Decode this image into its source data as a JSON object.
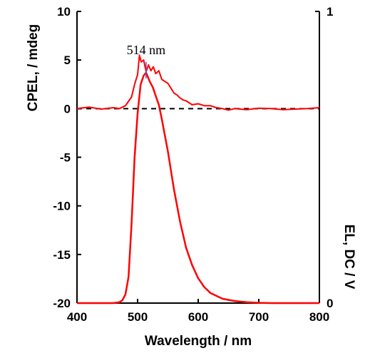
{
  "chart_data": {
    "type": "line",
    "xlabel": "Wavelength / nm",
    "ylabel_left": "CPEL, / mdeg",
    "ylabel_right": "EL, DC / V",
    "xlim": [
      400,
      800
    ],
    "ylim_left": [
      -20,
      10
    ],
    "ylim_right": [
      0,
      1.0
    ],
    "x_ticks": [
      "400",
      "500",
      "600",
      "700",
      "800"
    ],
    "y_ticks_left": [
      "10",
      "5",
      "0",
      "-5",
      "-10",
      "-15",
      "-20"
    ],
    "y_ticks_right": [
      "1",
      "0"
    ],
    "grid": false,
    "colors": {
      "series": "#ff0000",
      "reference": "#000000",
      "marker": "#5555cc"
    },
    "series": [
      {
        "axis": "left",
        "x": [
          400,
          420,
          440,
          460,
          470,
          480,
          490,
          495,
          500,
          503,
          506,
          510,
          514,
          518,
          522,
          526,
          530,
          535,
          540,
          545,
          550,
          555,
          560,
          565,
          570,
          575,
          580,
          590,
          600,
          610,
          620,
          630,
          640,
          650,
          660,
          680,
          700,
          720,
          740,
          760,
          780,
          800
        ],
        "y": [
          0.0,
          0.15,
          -0.05,
          0.1,
          0.0,
          0.3,
          1.2,
          2.5,
          3.5,
          5.5,
          4.8,
          5.0,
          3.8,
          4.5,
          3.9,
          4.3,
          3.6,
          3.9,
          3.0,
          2.8,
          2.6,
          2.1,
          1.6,
          1.4,
          1.1,
          0.9,
          0.8,
          0.4,
          0.5,
          0.3,
          0.3,
          0.1,
          0.0,
          -0.15,
          0.0,
          -0.1,
          0.05,
          0.0,
          -0.1,
          -0.05,
          0.0,
          0.1
        ]
      },
      {
        "axis": "right",
        "x": [
          400,
          460,
          470,
          475,
          480,
          485,
          490,
          495,
          500,
          505,
          510,
          514,
          520,
          525,
          530,
          535,
          540,
          550,
          560,
          570,
          580,
          590,
          600,
          610,
          620,
          640,
          660,
          680,
          700,
          720,
          740,
          760,
          800
        ],
        "y": [
          0.0,
          0.0,
          0.003,
          0.01,
          0.03,
          0.09,
          0.27,
          0.5,
          0.65,
          0.75,
          0.78,
          0.79,
          0.76,
          0.74,
          0.71,
          0.68,
          0.63,
          0.52,
          0.39,
          0.28,
          0.19,
          0.13,
          0.085,
          0.055,
          0.035,
          0.015,
          0.007,
          0.003,
          0.001,
          0.0,
          0.0,
          0.0,
          0.0
        ]
      }
    ],
    "reference_line": {
      "axis": "left",
      "y": 0,
      "style": "dashed"
    },
    "annotations": [
      {
        "text": "514 nm",
        "x": 514,
        "axis": "right",
        "y": 0.79
      }
    ]
  }
}
